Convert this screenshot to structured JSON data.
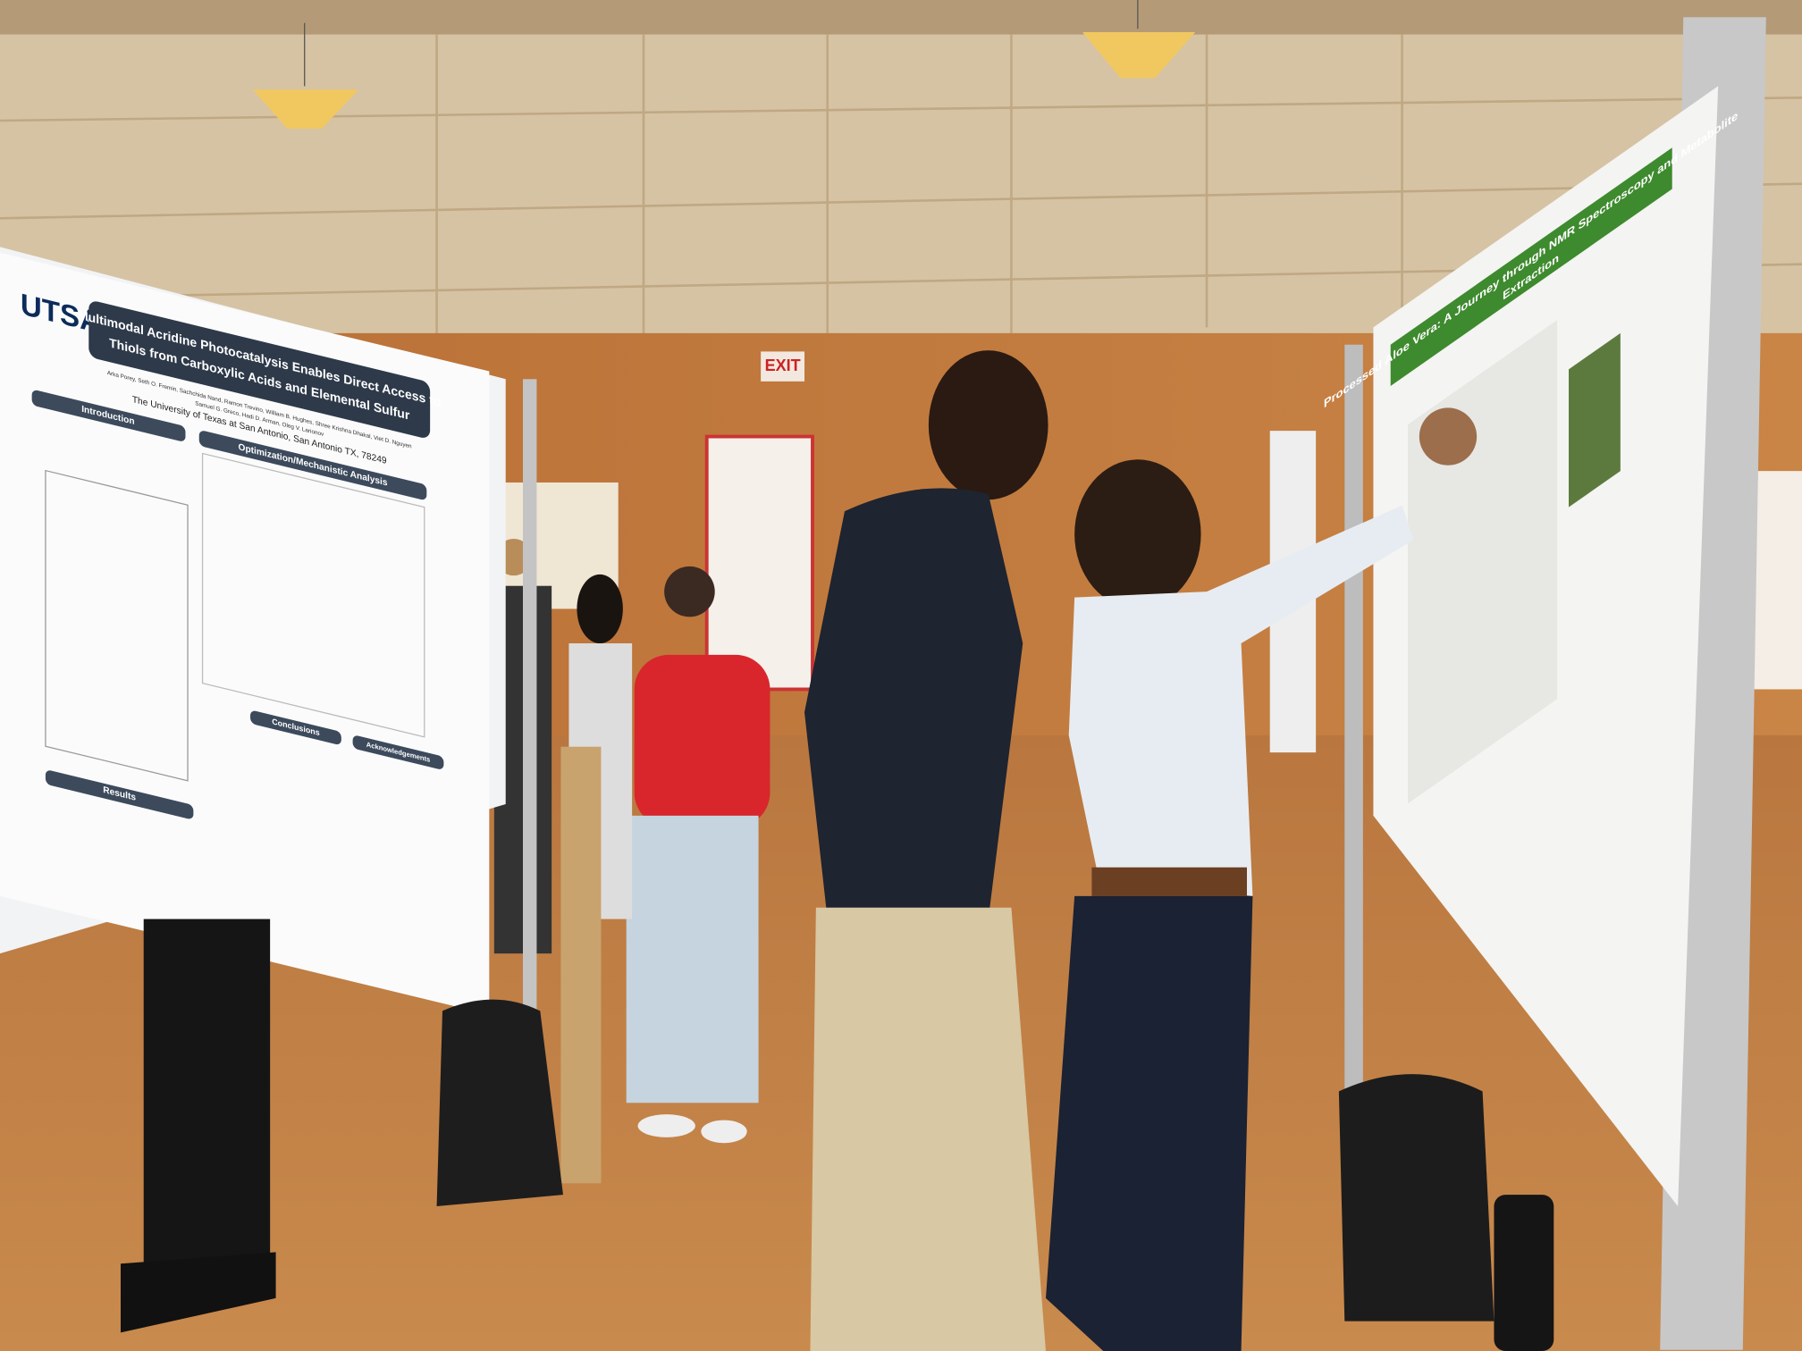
{
  "poster_left": {
    "logo": "UTSA",
    "title_lines": [
      "Multimodal Acridine Photocatalysis Enables Direct Access to",
      "Thiols from Carboxylic Acids and Elemental Sulfur"
    ],
    "authors": [
      "Arka Porey, Seth O. Fremin, Sachchida Nand, Ramon Trevino, William B. Hughes, Shree Krishna Dhakal, Viet D. Nguyen",
      "Samuel G. Greco, Hadi D. Arman, Oleg V. Larionov"
    ],
    "affiliation": "The University of Texas at San Antonio, San Antonio TX, 78249",
    "sections": [
      "Introduction",
      "Optimization/Mechanistic Analysis",
      "Conclusions",
      "Acknowledgements",
      "Results"
    ]
  },
  "exit_sign": "EXIT",
  "poster_right": {
    "title_lines": [
      "Processed Aloe Vera: A Journey through NMR Spectroscopy and Metabolite",
      "Extraction"
    ]
  }
}
